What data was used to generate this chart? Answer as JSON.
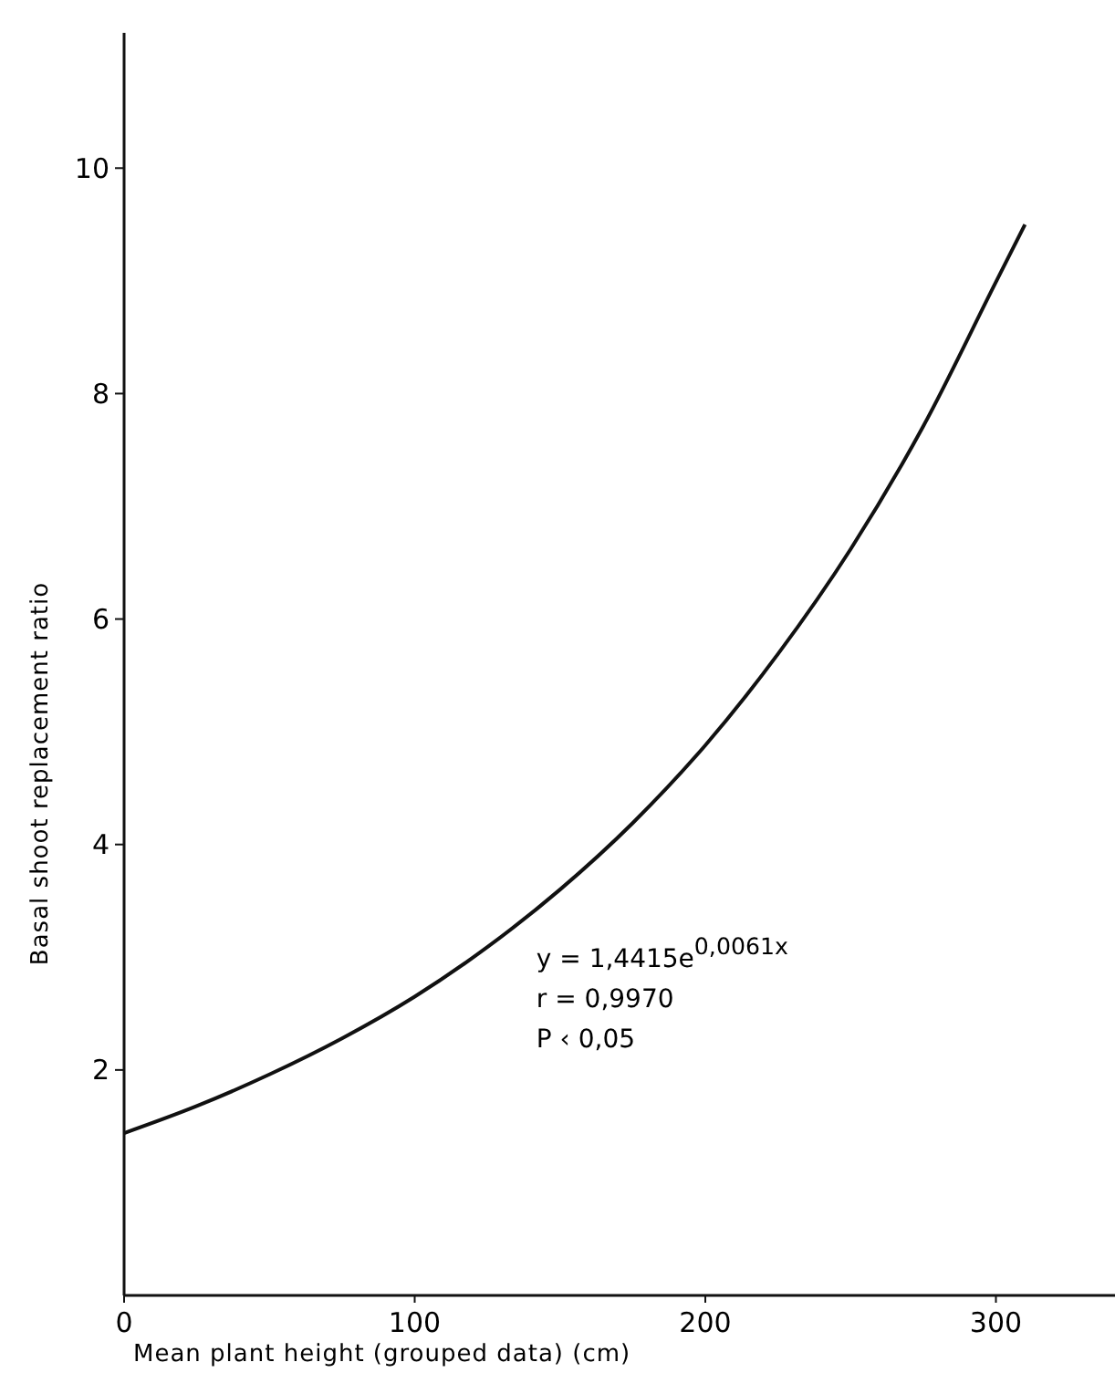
{
  "chart_data": {
    "type": "line",
    "xlabel": "Mean plant height (grouped data) (cm)",
    "ylabel": "Basal shoot replacement ratio",
    "x": [
      0,
      25,
      50,
      75,
      100,
      125,
      150,
      175,
      200,
      225,
      250,
      275,
      300,
      310
    ],
    "series": [
      {
        "color": "#111111",
        "values": [
          1.44,
          1.68,
          1.96,
          2.28,
          2.65,
          3.09,
          3.6,
          4.19,
          4.88,
          5.69,
          6.62,
          7.71,
          8.99,
          9.5
        ]
      }
    ],
    "xlim": [
      0,
      346
    ],
    "xticks": [
      0,
      100,
      200,
      300
    ],
    "ylim": [
      0,
      11.2
    ],
    "yticks": [
      2,
      4,
      6,
      8,
      10
    ],
    "grid": false,
    "marker": "none",
    "line_style": "solid",
    "annotations": [
      "y = 1,4415e$^{0,0061x}$",
      "r = 0,9970",
      "P ‹ 0,05"
    ]
  }
}
